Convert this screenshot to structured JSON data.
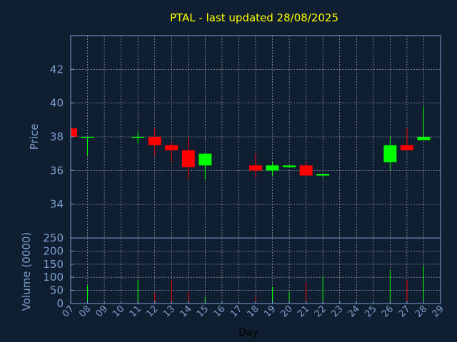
{
  "chart_data": {
    "type": "candlestick",
    "title": "PTAL - last updated 28/08/2025",
    "price_panel": {
      "ylabel": "Price",
      "ylim": [
        32,
        44
      ],
      "yticks": [
        34,
        36,
        38,
        40,
        42
      ],
      "grid": true
    },
    "volume_panel": {
      "ylabel": "Volume (0000)",
      "ylim": [
        0,
        250
      ],
      "yticks": [
        0,
        50,
        100,
        150,
        200,
        250
      ],
      "grid": true
    },
    "xlabel": "Day",
    "x_ticks": [
      "07",
      "08",
      "09",
      "10",
      "11",
      "12",
      "13",
      "14",
      "15",
      "16",
      "17",
      "18",
      "19",
      "20",
      "21",
      "22",
      "23",
      "24",
      "25",
      "26",
      "27",
      "28",
      "29"
    ],
    "colors": {
      "up": "#00ff00",
      "down": "#ff0000",
      "background": "#0f1e30",
      "axis": "#7f9fcf",
      "grid": "#ffffff",
      "title": "#ffff00"
    },
    "candles": [
      {
        "day": 7,
        "open": 38.5,
        "high": 38.5,
        "low": 38.0,
        "close": 38.0,
        "volume": 0
      },
      {
        "day": 8,
        "open": 38.0,
        "high": 38.0,
        "low": 36.9,
        "close": 38.0,
        "volume": 70
      },
      {
        "day": 11,
        "open": 38.0,
        "high": 38.3,
        "low": 37.6,
        "close": 38.0,
        "volume": 90
      },
      {
        "day": 12,
        "open": 38.0,
        "high": 38.5,
        "low": 36.9,
        "close": 37.5,
        "volume": 40
      },
      {
        "day": 13,
        "open": 37.5,
        "high": 37.7,
        "low": 36.5,
        "close": 37.2,
        "volume": 90
      },
      {
        "day": 14,
        "open": 37.2,
        "high": 38.0,
        "low": 35.5,
        "close": 36.2,
        "volume": 45
      },
      {
        "day": 15,
        "open": 36.3,
        "high": 37.0,
        "low": 35.5,
        "close": 37.0,
        "volume": 25
      },
      {
        "day": 18,
        "open": 36.3,
        "high": 37.0,
        "low": 35.6,
        "close": 36.0,
        "volume": 25
      },
      {
        "day": 19,
        "open": 36.0,
        "high": 36.5,
        "low": 35.7,
        "close": 36.3,
        "volume": 65
      },
      {
        "day": 20,
        "open": 36.2,
        "high": 36.3,
        "low": 36.2,
        "close": 36.3,
        "volume": 45
      },
      {
        "day": 21,
        "open": 36.3,
        "high": 36.5,
        "low": 35.7,
        "close": 35.7,
        "volume": 80
      },
      {
        "day": 22,
        "open": 35.7,
        "high": 35.8,
        "low": 35.6,
        "close": 35.8,
        "volume": 100
      },
      {
        "day": 26,
        "open": 36.5,
        "high": 38.0,
        "low": 36.0,
        "close": 37.5,
        "volume": 125
      },
      {
        "day": 27,
        "open": 37.5,
        "high": 38.5,
        "low": 37.2,
        "close": 37.2,
        "volume": 90
      },
      {
        "day": 28,
        "open": 37.8,
        "high": 39.8,
        "low": 37.8,
        "close": 38.0,
        "volume": 145
      }
    ]
  }
}
